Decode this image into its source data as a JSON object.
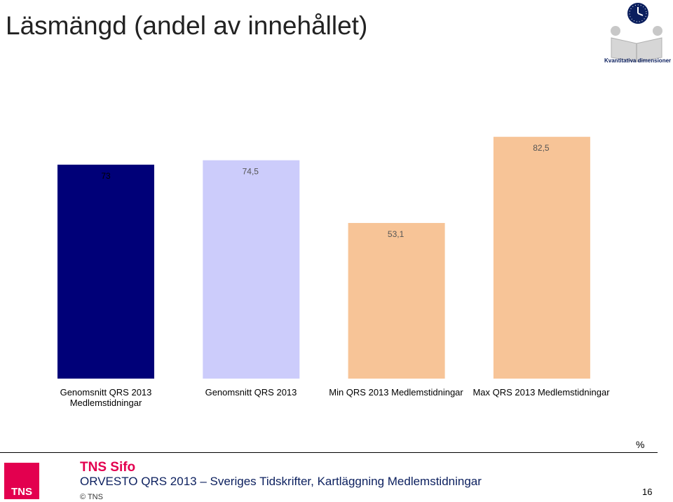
{
  "title": "Läsmängd (andel av innehållet)",
  "logo": {
    "name": "clock-book-logo",
    "text": "Kvantitativa dimensioner"
  },
  "chart_data": {
    "type": "bar",
    "categories": [
      "Genomsnitt QRS 2013 Medlemstidningar",
      "Genomsnitt QRS 2013",
      "Min QRS 2013 Medlemstidningar",
      "Max QRS 2013 Medlemstidningar"
    ],
    "category_lines": [
      [
        "Genomsnitt QRS 2013",
        "Medlemstidningar"
      ],
      [
        "Genomsnitt QRS 2013"
      ],
      [
        "Min QRS 2013 Medlemstidningar"
      ],
      [
        "Max QRS 2013 Medlemstidningar"
      ]
    ],
    "values": [
      73,
      74.5,
      53.1,
      82.5
    ],
    "value_labels": [
      "73",
      "74,5",
      "53,1",
      "82,5"
    ],
    "colors": [
      "#000078",
      "#ccccfb",
      "#f7c497",
      "#f7c497"
    ],
    "label_colors": [
      "#000000",
      "#555555",
      "#555555",
      "#555555"
    ],
    "ylim": [
      0,
      100
    ],
    "grid": false,
    "unit": "%"
  },
  "footer": {
    "brand": "TNS Sifo",
    "title": "ORVESTO QRS 2013 – Sveriges Tidskrifter, Kartläggning Medlemstidningar",
    "copyright": "© TNS",
    "page_number": "16",
    "logo_text": "TNS"
  }
}
